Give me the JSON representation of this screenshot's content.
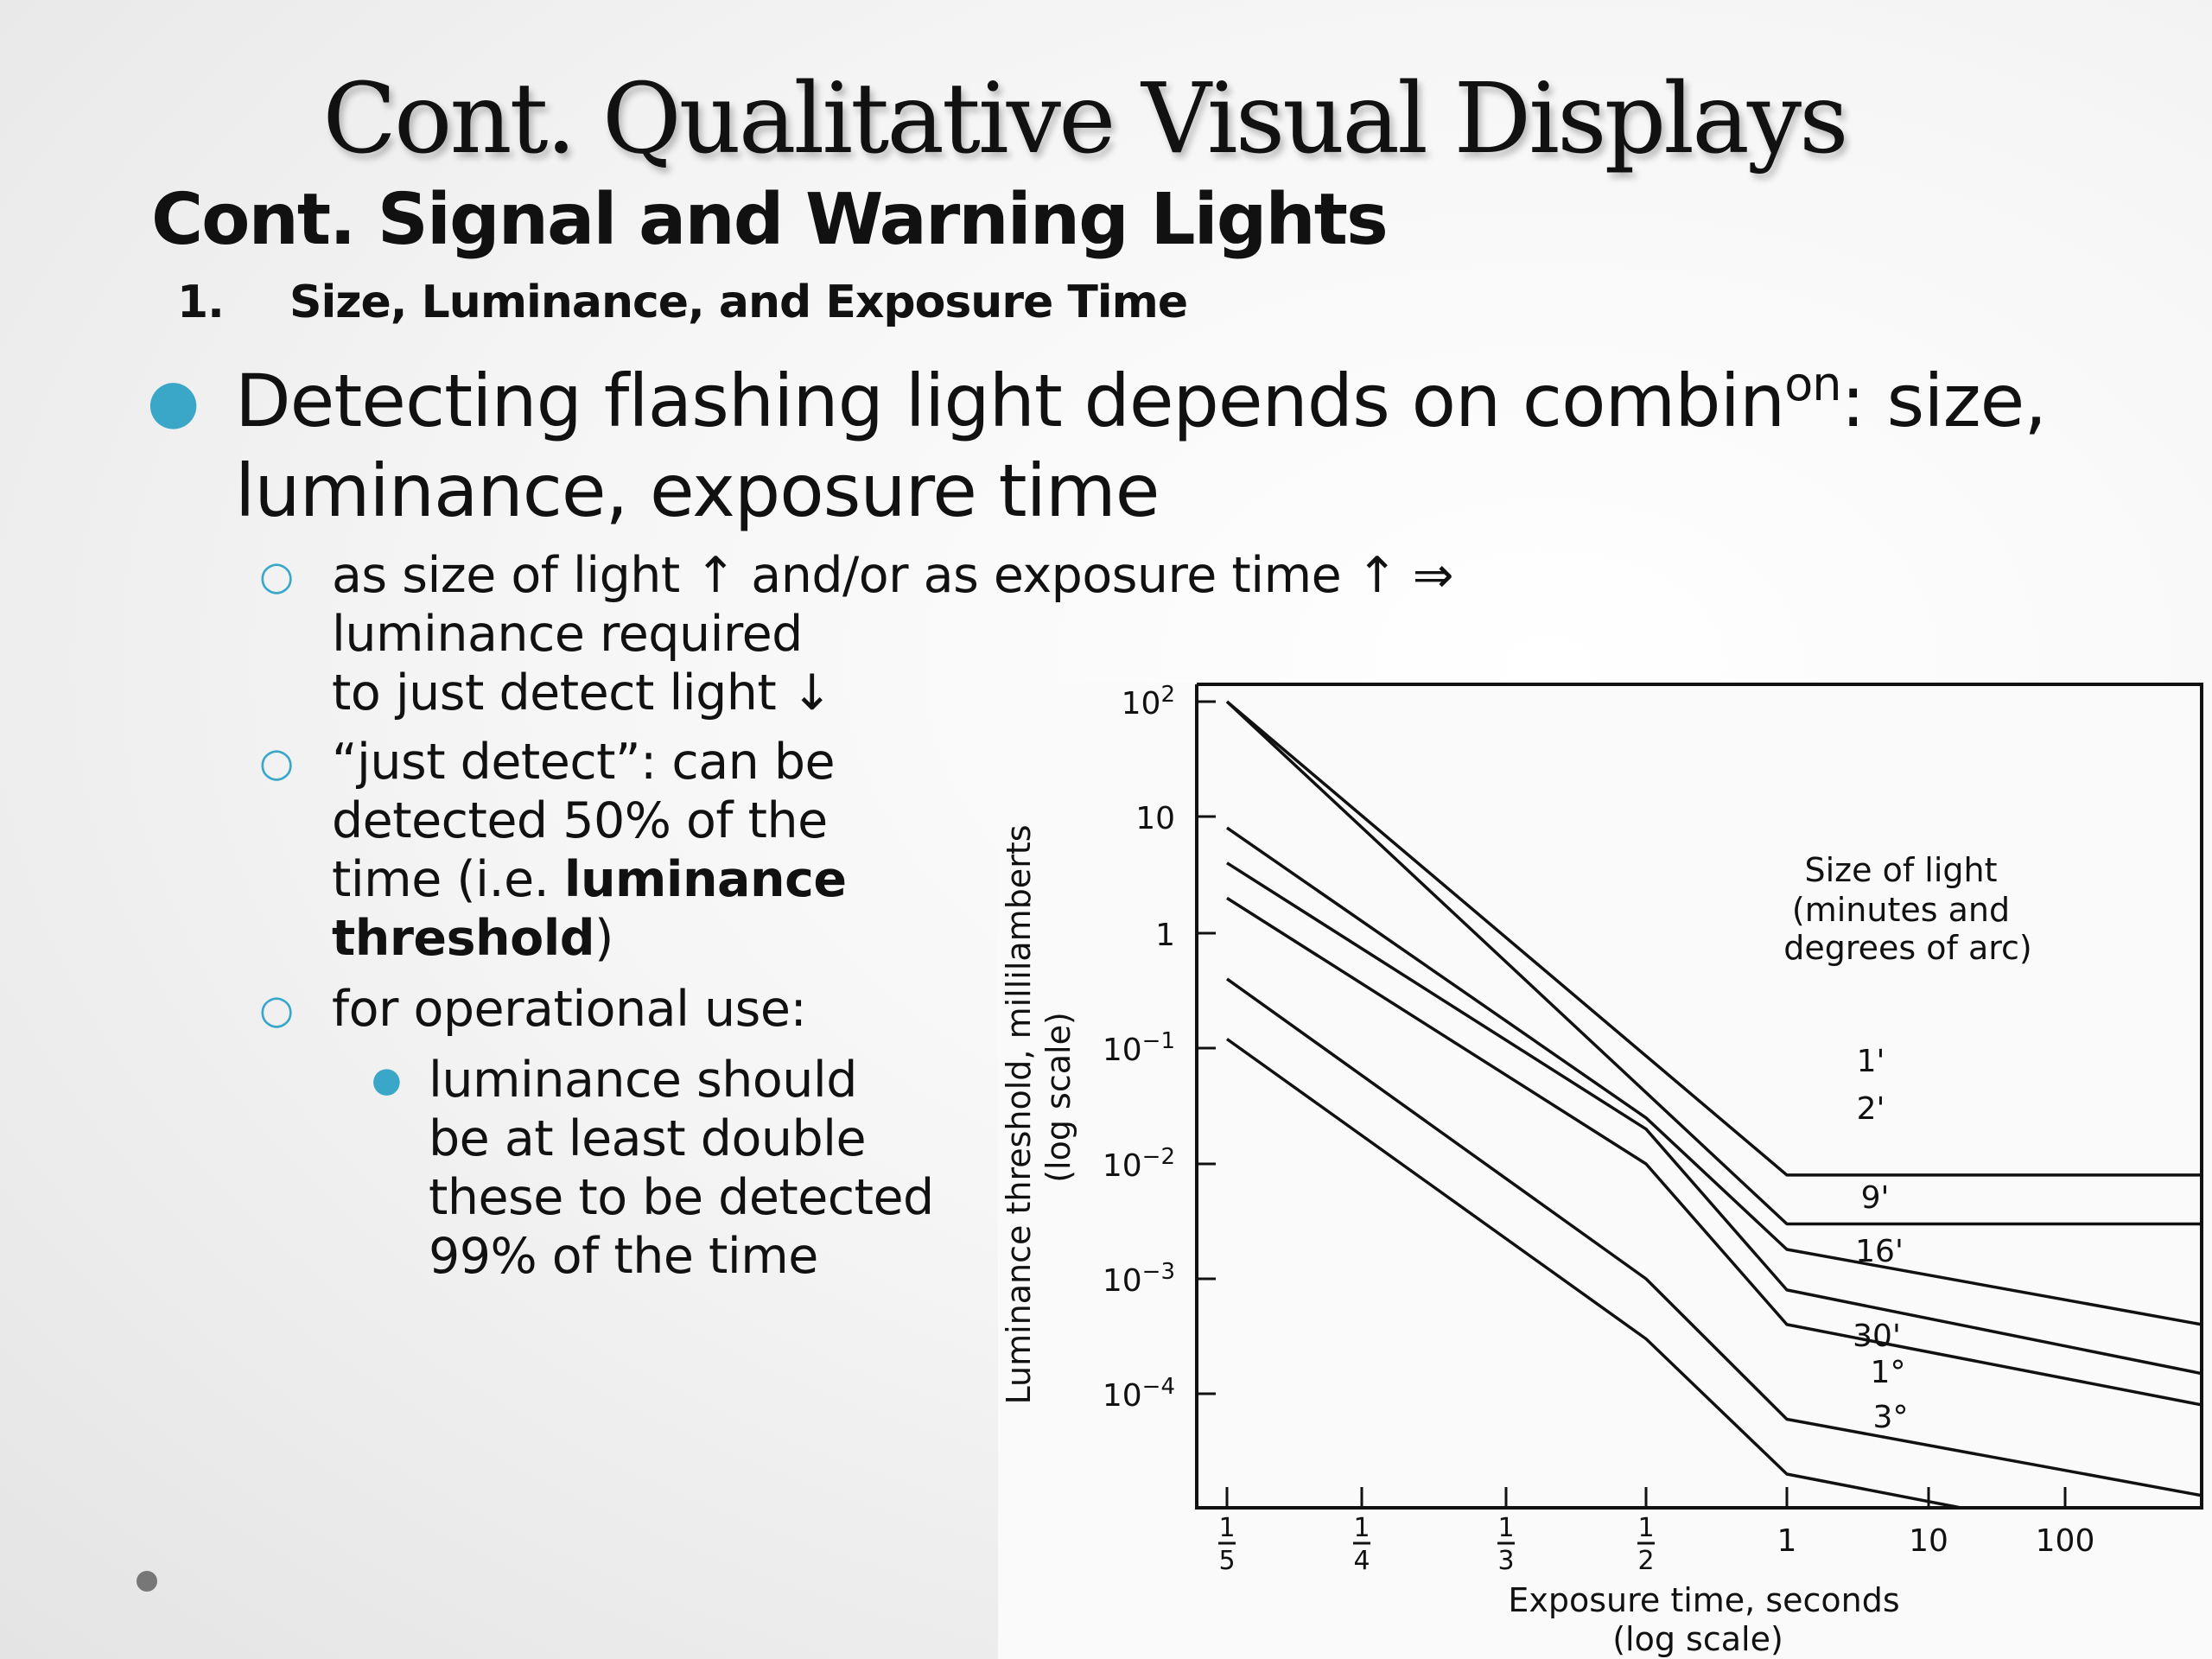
{
  "slide": {
    "title": "Cont. Qualitative Visual Displays",
    "subtitle": "Cont. Signal and Warning Lights",
    "numbered_item": {
      "number": "1.",
      "text": "Size, Luminance, and Exposure Time"
    },
    "main_bullet": {
      "line1_a": "Detecting flashing light depends on combin",
      "line1_sup": "on",
      "line1_b": ":  size,",
      "line2": "luminance, exposure time"
    },
    "sub_bullets": [
      {
        "lines": [
          "as size of light ↑ and/or as exposure time ↑ ⇒",
          "luminance required",
          "to just detect light ↓"
        ]
      },
      {
        "line1": "“just detect”: can be",
        "line2": "detected 50% of the",
        "line3_a": "time (i.e. ",
        "line3_bold": "luminance",
        "line4_bold": "threshold",
        "line4_b": ")"
      },
      {
        "lines": [
          "for operational use:"
        ]
      }
    ],
    "sub_sub_bullet": {
      "lines": [
        "luminance should",
        "be at least double",
        "these to be detected",
        "99% of the time"
      ]
    },
    "bullet_color": "#3aa7c9"
  },
  "chart_data": {
    "type": "line",
    "xlabel": "Exposure time, seconds",
    "xlabel_note": "(log scale)",
    "ylabel": "Luminance threshold, millilamberts",
    "ylabel_note": "(log scale)",
    "x_tick_labels": [
      {
        "num": "1",
        "den": "5"
      },
      {
        "num": "1",
        "den": "4"
      },
      {
        "num": "1",
        "den": "3"
      },
      {
        "num": "1",
        "den": "2"
      },
      {
        "plain": "1"
      },
      {
        "plain": "10"
      },
      {
        "plain": "100"
      }
    ],
    "y_tick_labels": [
      {
        "base": "10",
        "exp": "2"
      },
      {
        "base": "10",
        "exp": ""
      },
      {
        "base": "1",
        "exp": ""
      },
      {
        "base": "10",
        "exp": "−1"
      },
      {
        "base": "10",
        "exp": "−2"
      },
      {
        "base": "10",
        "exp": "−3"
      },
      {
        "base": "10",
        "exp": "−4"
      }
    ],
    "legend_title": [
      "Size of light",
      "(minutes and",
      "degrees of arc)"
    ],
    "grid": false,
    "series": [
      {
        "name": "1'",
        "points": [
          [
            0.2,
            100
          ],
          [
            1,
            0.008
          ],
          [
            100,
            0.008
          ]
        ]
      },
      {
        "name": "2'",
        "points": [
          [
            0.2,
            100
          ],
          [
            1,
            0.003
          ],
          [
            100,
            0.003
          ]
        ]
      },
      {
        "name": "9'",
        "points": [
          [
            0.2,
            8
          ],
          [
            0.5,
            0.025
          ],
          [
            1,
            0.0018
          ],
          [
            100,
            0.0004
          ]
        ]
      },
      {
        "name": "16'",
        "points": [
          [
            0.2,
            4
          ],
          [
            0.5,
            0.02
          ],
          [
            1,
            0.0008
          ],
          [
            100,
            0.00015
          ]
        ]
      },
      {
        "name": "30'",
        "points": [
          [
            0.2,
            2
          ],
          [
            0.5,
            0.01
          ],
          [
            1,
            0.0004
          ],
          [
            100,
            8e-05
          ]
        ]
      },
      {
        "name": "1°",
        "points": [
          [
            0.2,
            0.4
          ],
          [
            0.5,
            0.001
          ],
          [
            1,
            6e-05
          ],
          [
            100,
            1.3e-05
          ]
        ]
      },
      {
        "name": "3°",
        "points": [
          [
            0.2,
            0.12
          ],
          [
            0.5,
            0.0003
          ],
          [
            1,
            2e-05
          ],
          [
            100,
            4e-06
          ]
        ]
      }
    ]
  }
}
